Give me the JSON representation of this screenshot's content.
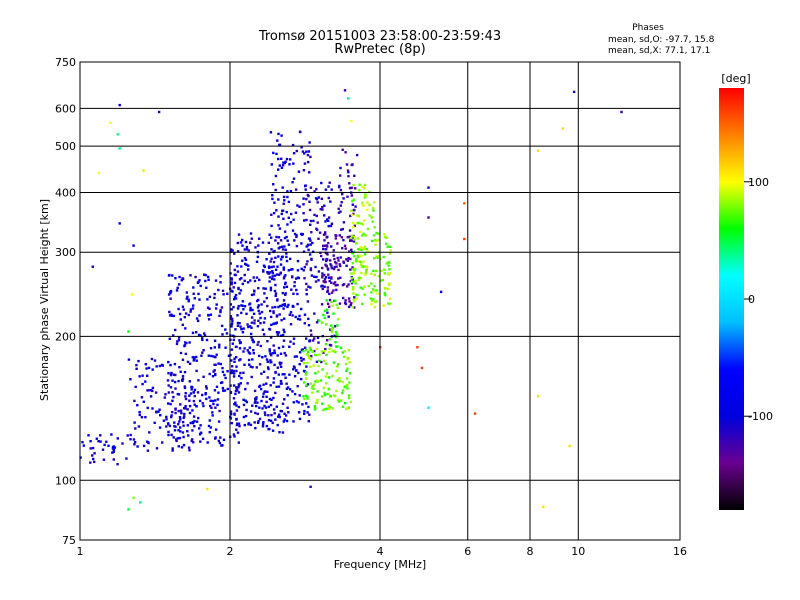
{
  "chart_data": {
    "type": "scatter",
    "title": "Tromsø 20151003 23:58:00-23:59:43",
    "subtitle": "RwPretec (8p)",
    "xlabel": "Frequency [MHz]",
    "ylabel": "Stationary phase Virtual Height [km]",
    "x_scale": "log",
    "y_scale": "log",
    "xlim": [
      1,
      16
    ],
    "ylim": [
      75,
      750
    ],
    "x_ticks": [
      1,
      2,
      4,
      6,
      8,
      10,
      16
    ],
    "x_tick_labels": [
      "1",
      "2",
      "4",
      "6",
      "8",
      "10",
      "16"
    ],
    "y_ticks": [
      75,
      100,
      200,
      300,
      400,
      500,
      600,
      750
    ],
    "y_tick_labels": [
      "75",
      "100",
      "200",
      "300",
      "400",
      "500",
      "600",
      "750"
    ],
    "grid": true,
    "stats": {
      "heading": "Phases",
      "line_o": "mean, sd,O: -97.7, 15.8",
      "line_x": "mean, sd,X:  77.1, 17.1"
    },
    "colorbar": {
      "label": "[deg]",
      "range": [
        -180,
        180
      ],
      "ticks": [
        100,
        0,
        -100
      ],
      "tick_labels": [
        "100",
        "0",
        "-100"
      ],
      "colormap": [
        "#000000",
        "#6a0090",
        "#0000dd",
        "#0000ff",
        "#00bfff",
        "#00ffff",
        "#00ff00",
        "#ffff00",
        "#ff8000",
        "#ff0000"
      ]
    },
    "series": [
      {
        "clusters": [
          {
            "f": [
              1.0,
              1.25
            ],
            "h": [
              108,
              125
            ],
            "n": 35,
            "phase": -100
          },
          {
            "f": [
              1.25,
              1.7
            ],
            "h": [
              115,
              180
            ],
            "n": 120,
            "phase": -100
          },
          {
            "f": [
              1.5,
              2.1
            ],
            "h": [
              118,
              270
            ],
            "n": 320,
            "phase": -100
          },
          {
            "f": [
              2.0,
              2.6
            ],
            "h": [
              125,
              330
            ],
            "n": 380,
            "phase": -100
          },
          {
            "f": [
              2.4,
              2.9
            ],
            "h": [
              130,
              540
            ],
            "n": 260,
            "phase": -100
          },
          {
            "f": [
              2.8,
              3.2
            ],
            "h": [
              250,
              420
            ],
            "n": 90,
            "phase": -110
          },
          {
            "f": [
              3.05,
              3.55
            ],
            "h": [
              230,
              330
            ],
            "n": 120,
            "phase": -125
          },
          {
            "f": [
              3.3,
              3.6
            ],
            "h": [
              330,
              500
            ],
            "n": 40,
            "phase": -120
          },
          {
            "f": [
              2.9,
              3.25
            ],
            "h": [
              175,
              230
            ],
            "n": 25,
            "phase": -120
          },
          {
            "f": [
              3.5,
              4.2
            ],
            "h": [
              230,
              330
            ],
            "n": 140,
            "phase": 80
          },
          {
            "f": [
              3.5,
              3.9
            ],
            "h": [
              330,
              420
            ],
            "n": 40,
            "phase": 85
          },
          {
            "f": [
              2.8,
              3.5
            ],
            "h": [
              140,
              190
            ],
            "n": 130,
            "phase": 75
          },
          {
            "f": [
              3.0,
              3.3
            ],
            "h": [
              190,
              240
            ],
            "n": 30,
            "phase": 70
          }
        ],
        "scattered": [
          {
            "f": 1.09,
            "h": 440,
            "phase": 100
          },
          {
            "f": 1.06,
            "h": 280,
            "phase": -100
          },
          {
            "f": 1.15,
            "h": 560,
            "phase": 100
          },
          {
            "f": 1.19,
            "h": 530,
            "phase": 40
          },
          {
            "f": 1.2,
            "h": 495,
            "phase": 40
          },
          {
            "f": 1.2,
            "h": 610,
            "phase": -100
          },
          {
            "f": 1.34,
            "h": 445,
            "phase": 110
          },
          {
            "f": 1.44,
            "h": 590,
            "phase": -110
          },
          {
            "f": 1.2,
            "h": 345,
            "phase": -100
          },
          {
            "f": 1.28,
            "h": 310,
            "phase": -100
          },
          {
            "f": 1.27,
            "h": 245,
            "phase": 100
          },
          {
            "f": 1.25,
            "h": 205,
            "phase": 60
          },
          {
            "f": 1.28,
            "h": 92,
            "phase": 80
          },
          {
            "f": 1.32,
            "h": 90,
            "phase": 40
          },
          {
            "f": 1.25,
            "h": 87,
            "phase": 50
          },
          {
            "f": 1.8,
            "h": 96,
            "phase": 110
          },
          {
            "f": 2.9,
            "h": 97,
            "phase": -110
          },
          {
            "f": 3.4,
            "h": 655,
            "phase": -120
          },
          {
            "f": 3.45,
            "h": 630,
            "phase": 40
          },
          {
            "f": 3.5,
            "h": 565,
            "phase": 100
          },
          {
            "f": 5.0,
            "h": 410,
            "phase": -90
          },
          {
            "f": 5.0,
            "h": 355,
            "phase": -120
          },
          {
            "f": 5.3,
            "h": 248,
            "phase": -90
          },
          {
            "f": 5.9,
            "h": 380,
            "phase": 150
          },
          {
            "f": 5.9,
            "h": 320,
            "phase": 160
          },
          {
            "f": 4.75,
            "h": 190,
            "phase": 160
          },
          {
            "f": 4.85,
            "h": 172,
            "phase": 160
          },
          {
            "f": 5.0,
            "h": 142,
            "phase": 10
          },
          {
            "f": 6.2,
            "h": 138,
            "phase": 160
          },
          {
            "f": 4.0,
            "h": 190,
            "phase": 160
          },
          {
            "f": 8.3,
            "h": 490,
            "phase": 110
          },
          {
            "f": 9.3,
            "h": 545,
            "phase": 110
          },
          {
            "f": 8.3,
            "h": 150,
            "phase": 110
          },
          {
            "f": 9.6,
            "h": 118,
            "phase": 110
          },
          {
            "f": 8.5,
            "h": 88,
            "phase": 110
          },
          {
            "f": 9.8,
            "h": 650,
            "phase": -110
          },
          {
            "f": 12.2,
            "h": 590,
            "phase": -120
          }
        ]
      }
    ]
  }
}
